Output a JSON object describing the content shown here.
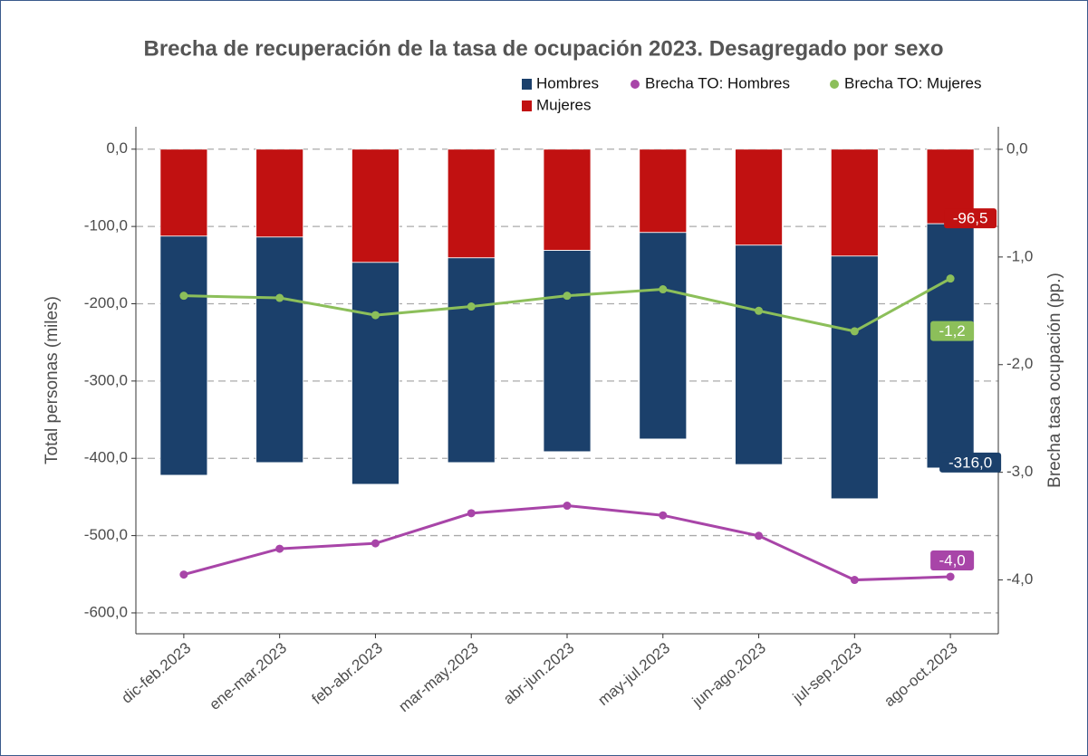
{
  "chart_data": {
    "type": "bar",
    "title": "Brecha de recuperación de la tasa de ocupación 2023. Desagregado por sexo",
    "ylabel": "Total personas (miles)",
    "y2label": "Brecha tasa ocupación (pp.)",
    "categories": [
      "dic-feb.2023",
      "ene-mar.2023",
      "feb-abr.2023",
      "mar-may.2023",
      "abr-jun.2023",
      "may-jul.2023",
      "jun-ago.2023",
      "jul-sep.2023",
      "ago-oct.2023"
    ],
    "series": [
      {
        "name": "Hombres",
        "type": "bar",
        "color": "#1b406b",
        "values": [
          -309.4,
          -291.8,
          -287.1,
          -264.9,
          -260.4,
          -267.2,
          -283.8,
          -314.0,
          -316.0
        ],
        "value_labels": [
          null,
          null,
          null,
          null,
          null,
          null,
          null,
          null,
          "-316,0"
        ]
      },
      {
        "name": "Mujeres",
        "type": "bar",
        "color": "#c11111",
        "values": [
          -112.5,
          -113.7,
          -146.5,
          -140.6,
          -131.0,
          -107.8,
          -124.2,
          -138.3,
          -96.5
        ],
        "value_labels": [
          null,
          null,
          null,
          null,
          null,
          null,
          null,
          null,
          "-96,5"
        ]
      },
      {
        "name": "Brecha TO: Hombres",
        "type": "line",
        "axis": "y2",
        "color": "#a845a8",
        "values": [
          -3.95,
          -3.71,
          -3.66,
          -3.38,
          -3.31,
          -3.4,
          -3.59,
          -4.0,
          -3.97
        ],
        "value_labels": [
          null,
          null,
          null,
          null,
          null,
          null,
          null,
          null,
          "-4,0"
        ]
      },
      {
        "name": "Brecha TO: Mujeres",
        "type": "line",
        "axis": "y2",
        "color": "#8cbf5a",
        "values": [
          -1.36,
          -1.38,
          -1.54,
          -1.46,
          -1.36,
          -1.3,
          -1.5,
          -1.69,
          -1.2
        ],
        "value_labels": [
          null,
          null,
          null,
          null,
          null,
          null,
          null,
          null,
          "-1,2"
        ]
      }
    ],
    "ylim": [
      -627,
      29
    ],
    "yticks": [
      {
        "value": 0,
        "label": "0,0"
      },
      {
        "value": -100,
        "label": "-100,0"
      },
      {
        "value": -200,
        "label": "-200,0"
      },
      {
        "value": -300,
        "label": "-300,0"
      },
      {
        "value": -400,
        "label": "-400,0"
      },
      {
        "value": -500,
        "label": "-500,0"
      },
      {
        "value": -600,
        "label": "-600,0"
      }
    ],
    "y2lim": [
      -4.5,
      0.21
    ],
    "y2ticks": [
      {
        "value": 0,
        "label": "0,0"
      },
      {
        "value": -1,
        "label": "-1,0"
      },
      {
        "value": -2,
        "label": "-2,0"
      },
      {
        "value": -3,
        "label": "-3,0"
      },
      {
        "value": -4,
        "label": "-4,0"
      }
    ],
    "grid": true
  }
}
